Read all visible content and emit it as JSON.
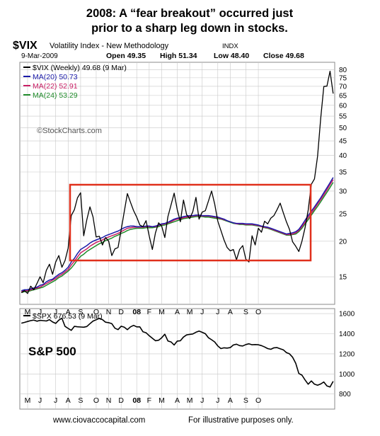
{
  "headline": {
    "line1": "2008: A “fear breakout” occurred just",
    "line2": "prior to a sharp leg down in stocks."
  },
  "header": {
    "symbol": "$VIX",
    "name": "Volatility Index - New Methodology",
    "exchange": "INDX",
    "date": "9-Mar-2009",
    "open": "Open 49.35",
    "high": "High 51.34",
    "low": "Low 48.40",
    "close": "Close 49.68"
  },
  "watermark": "©StockCharts.com",
  "footer": {
    "source": "www.ciovaccocapital.com",
    "disclaimer": "For illustrative purposes only."
  },
  "colors": {
    "vix": "#000000",
    "ma20": "#1a1aa8",
    "ma22": "#c81e64",
    "ma24": "#1f8a2a",
    "spx": "#000000",
    "box": "#e0301c",
    "grid": "#c8c8c8"
  },
  "chart_data": [
    {
      "type": "line",
      "title": "$VIX (Weekly) 49.68 (9 Mar)",
      "scale": "log",
      "ylim": [
        12,
        85
      ],
      "y_ticks": [
        15,
        20,
        25,
        30,
        35,
        40,
        45,
        50,
        55,
        60,
        65,
        70,
        75,
        80
      ],
      "grid": true,
      "legend_position": "top-left",
      "x_tick_labels": [
        "M",
        "J",
        "J",
        "A",
        "S",
        "O",
        "N",
        "D",
        "08",
        "F",
        "M",
        "A",
        "M",
        "J",
        "J",
        "A",
        "S",
        "O"
      ],
      "series": [
        {
          "name": "$VIX (Weekly) 49.68 (9 Mar)",
          "values": [
            13.2,
            13.4,
            13.1,
            13.9,
            13.5,
            14.2,
            15.0,
            14.3,
            15.8,
            16.6,
            15.3,
            16.9,
            17.8,
            16.2,
            17.1,
            18.9,
            24.6,
            25.8,
            28.4,
            29.6,
            20.9,
            23.8,
            26.4,
            24.3,
            20.7,
            20.8,
            19.4,
            20.6,
            20.0,
            17.8,
            18.8,
            19.0,
            21.9,
            25.4,
            29.4,
            27.4,
            25.6,
            24.3,
            22.8,
            22.5,
            23.6,
            20.9,
            18.7,
            21.4,
            23.2,
            22.6,
            20.6,
            24.4,
            26.8,
            29.5,
            25.8,
            23.4,
            27.9,
            24.8,
            24.0,
            25.4,
            28.5,
            23.9,
            25.3,
            25.6,
            27.7,
            30.0,
            27.0,
            23.5,
            21.8,
            20.2,
            19.0,
            18.5,
            18.7,
            17.2,
            18.7,
            19.3,
            17.3,
            16.9,
            20.9,
            19.4,
            22.2,
            21.5,
            23.5,
            23.0,
            24.1,
            24.6,
            25.8,
            27.2,
            25.2,
            23.4,
            22.0,
            19.9,
            19.2,
            18.4,
            20.0,
            22.3,
            25.7,
            31.7,
            33.1,
            39.8,
            54.0,
            69.9,
            70.1,
            79.1,
            66.0
          ]
        },
        {
          "name": "MA(20) 50.73",
          "values": [
            13.4,
            13.5,
            13.5,
            13.6,
            13.7,
            13.8,
            14.0,
            14.1,
            14.4,
            14.6,
            14.7,
            15.0,
            15.3,
            15.5,
            15.8,
            16.2,
            16.9,
            17.4,
            18.1,
            18.7,
            19.0,
            19.3,
            19.7,
            20.0,
            20.2,
            20.4,
            20.6,
            20.9,
            21.1,
            21.3,
            21.5,
            21.7,
            22.0,
            22.3,
            22.5,
            22.6,
            22.6,
            22.5,
            22.5,
            22.5,
            22.6,
            22.6,
            22.5,
            22.6,
            22.8,
            23.0,
            23.1,
            23.3,
            23.6,
            23.9,
            24.1,
            24.2,
            24.4,
            24.5,
            24.6,
            24.6,
            24.7,
            24.7,
            24.6,
            24.6,
            24.6,
            24.5,
            24.4,
            24.3,
            24.1,
            23.9,
            23.6,
            23.4,
            23.2,
            23.1,
            23.1,
            23.1,
            23.0,
            23.0,
            23.0,
            22.9,
            22.8,
            22.6,
            22.5,
            22.4,
            22.2,
            22.0,
            21.8,
            21.6,
            21.4,
            21.2,
            21.3,
            21.4,
            21.6,
            22.0,
            22.8,
            23.7,
            24.6,
            25.5,
            26.4,
            27.4,
            28.4,
            29.6,
            30.8,
            32.1,
            33.5
          ]
        },
        {
          "name": "MA(22) 52.91",
          "values": [
            13.3,
            13.4,
            13.4,
            13.5,
            13.6,
            13.7,
            13.8,
            14.0,
            14.2,
            14.4,
            14.6,
            14.8,
            15.1,
            15.3,
            15.6,
            15.9,
            16.5,
            17.0,
            17.6,
            18.2,
            18.5,
            18.8,
            19.2,
            19.5,
            19.8,
            20.0,
            20.2,
            20.5,
            20.7,
            20.9,
            21.1,
            21.3,
            21.6,
            21.9,
            22.2,
            22.3,
            22.4,
            22.4,
            22.4,
            22.4,
            22.5,
            22.5,
            22.5,
            22.5,
            22.7,
            22.9,
            23.0,
            23.2,
            23.4,
            23.7,
            23.9,
            24.0,
            24.2,
            24.3,
            24.4,
            24.5,
            24.6,
            24.6,
            24.5,
            24.5,
            24.5,
            24.4,
            24.3,
            24.2,
            24.0,
            23.8,
            23.6,
            23.4,
            23.2,
            23.0,
            23.0,
            23.0,
            22.9,
            22.9,
            22.9,
            22.8,
            22.7,
            22.5,
            22.4,
            22.3,
            22.1,
            21.9,
            21.7,
            21.5,
            21.3,
            21.1,
            21.1,
            21.2,
            21.4,
            21.8,
            22.5,
            23.3,
            24.2,
            25.1,
            26.0,
            27.0,
            28.0,
            29.1,
            30.3,
            31.6,
            32.9
          ]
        },
        {
          "name": "MA(24) 53.29",
          "values": [
            13.2,
            13.3,
            13.3,
            13.4,
            13.5,
            13.6,
            13.7,
            13.8,
            14.0,
            14.2,
            14.4,
            14.6,
            14.9,
            15.1,
            15.4,
            15.7,
            16.1,
            16.6,
            17.2,
            17.7,
            18.0,
            18.4,
            18.7,
            19.0,
            19.3,
            19.6,
            19.8,
            20.1,
            20.3,
            20.5,
            20.8,
            21.0,
            21.3,
            21.5,
            21.8,
            22.0,
            22.1,
            22.2,
            22.2,
            22.2,
            22.3,
            22.3,
            22.3,
            22.4,
            22.5,
            22.7,
            22.8,
            23.0,
            23.2,
            23.4,
            23.6,
            23.8,
            24.0,
            24.1,
            24.2,
            24.3,
            24.4,
            24.4,
            24.4,
            24.3,
            24.3,
            24.2,
            24.1,
            24.0,
            23.9,
            23.7,
            23.5,
            23.3,
            23.1,
            23.0,
            22.9,
            22.9,
            22.8,
            22.8,
            22.8,
            22.7,
            22.6,
            22.5,
            22.3,
            22.2,
            22.0,
            21.8,
            21.6,
            21.4,
            21.2,
            21.0,
            21.0,
            21.1,
            21.2,
            21.6,
            22.2,
            23.0,
            23.8,
            24.7,
            25.6,
            26.5,
            27.5,
            28.6,
            29.7,
            30.9,
            32.2
          ]
        }
      ]
    },
    {
      "type": "line",
      "title": "$SPX 676.53 (9 Mar)",
      "label": "S&P 500",
      "ylim": [
        650,
        1650
      ],
      "y_ticks": [
        800,
        1000,
        1200,
        1400,
        1600
      ],
      "grid": true,
      "x_tick_labels": [
        "M",
        "J",
        "J",
        "A",
        "S",
        "O",
        "N",
        "D",
        "08",
        "F",
        "M",
        "A",
        "M",
        "J",
        "J",
        "A",
        "S",
        "O"
      ],
      "series": [
        {
          "name": "$SPX 676.53 (9 Mar)",
          "values": [
            1505,
            1513,
            1522,
            1530,
            1536,
            1525,
            1533,
            1530,
            1527,
            1540,
            1517,
            1503,
            1535,
            1554,
            1473,
            1453,
            1434,
            1473,
            1469,
            1467,
            1465,
            1472,
            1500,
            1526,
            1539,
            1553,
            1540,
            1515,
            1510,
            1500,
            1455,
            1441,
            1475,
            1465,
            1440,
            1468,
            1483,
            1468,
            1468,
            1420,
            1410,
            1380,
            1355,
            1330,
            1335,
            1360,
            1395,
            1328,
            1318,
            1288,
            1327,
            1330,
            1367,
            1388,
            1394,
            1398,
            1415,
            1426,
            1414,
            1400,
            1360,
            1340,
            1318,
            1278,
            1252,
            1260,
            1257,
            1262,
            1288,
            1296,
            1282,
            1278,
            1292,
            1300,
            1290,
            1292,
            1290,
            1282,
            1268,
            1252,
            1245,
            1260,
            1262,
            1251,
            1240,
            1213,
            1200,
            1166,
            1106,
            1004,
            988,
            940,
            898,
            930,
            898,
            888,
            900,
            920,
            880,
            870,
            927
          ]
        }
      ]
    }
  ]
}
